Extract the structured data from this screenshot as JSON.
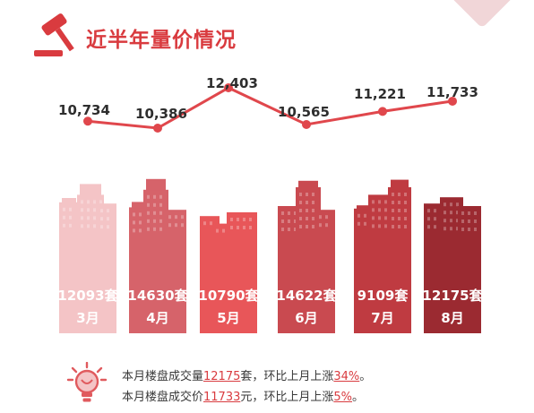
{
  "title": "近半年量价情况",
  "colors": {
    "accent": "#d93b3f",
    "line": "#e0474c",
    "buildings": [
      "#f4c4c6",
      "#d6636a",
      "#e85659",
      "#c94a50",
      "#bf3b41",
      "#9b2a31"
    ]
  },
  "icons": {
    "title": "gavel-icon",
    "summary": "lightbulb-icon"
  },
  "chart_data": {
    "type": "line",
    "x": [
      "3月",
      "4月",
      "5月",
      "6月",
      "7月",
      "8月"
    ],
    "series": [
      {
        "values": [
          10734,
          10386,
          12403,
          10565,
          11221,
          11733
        ]
      }
    ],
    "price_labels": [
      "10,734",
      "10,386",
      "12,403",
      "10,565",
      "11,221",
      "11,733"
    ],
    "volume": {
      "type": "bar",
      "values": [
        12093,
        14630,
        10790,
        14622,
        9109,
        12175
      ],
      "labels": [
        "12093套",
        "14630套",
        "10790套",
        "14622套",
        "9109套",
        "12175套"
      ]
    },
    "month_labels": [
      "3月",
      "4月",
      "5月",
      "6月",
      "7月",
      "8月"
    ]
  },
  "summary": {
    "line1": {
      "prefix": "本月楼盘成交量",
      "value": "12175",
      "middle": "套，环比上月上涨",
      "pct": "34%",
      "suffix": "。"
    },
    "line2": {
      "prefix": "本月楼盘成交价",
      "value": "11733",
      "middle": "元，环比上月上涨",
      "pct": "5%",
      "suffix": "。"
    }
  }
}
